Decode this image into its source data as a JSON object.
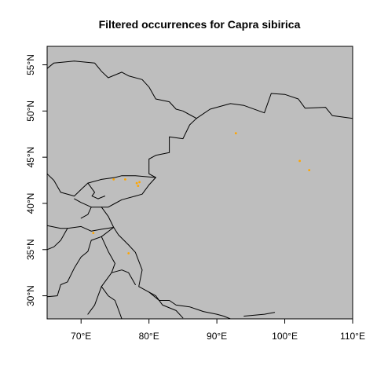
{
  "title": "Filtered occurrences for Capra sibirica",
  "colors": {
    "land": "#bebebe",
    "border": "#000000",
    "point": "#ffa500",
    "background": "#ffffff"
  },
  "chart_data": {
    "type": "scatter",
    "title": "Filtered occurrences for Capra sibirica",
    "xlim": [
      65,
      110
    ],
    "ylim": [
      27.5,
      57
    ],
    "x_ticks": [
      {
        "value": 70,
        "label": "70°E"
      },
      {
        "value": 80,
        "label": "80°E"
      },
      {
        "value": 90,
        "label": "90°E"
      },
      {
        "value": 100,
        "label": "100°E"
      },
      {
        "value": 110,
        "label": "110°E"
      }
    ],
    "y_ticks": [
      {
        "value": 30,
        "label": "30°N"
      },
      {
        "value": 35,
        "label": "35°N"
      },
      {
        "value": 40,
        "label": "40°N"
      },
      {
        "value": 45,
        "label": "45°N"
      },
      {
        "value": 50,
        "label": "50°N"
      },
      {
        "value": 55,
        "label": "55°N"
      }
    ],
    "points": [
      {
        "lon": 74.8,
        "lat": 42.6
      },
      {
        "lon": 76.5,
        "lat": 42.6
      },
      {
        "lon": 78.2,
        "lat": 42.2
      },
      {
        "lon": 78.4,
        "lat": 41.9
      },
      {
        "lon": 78.6,
        "lat": 42.3
      },
      {
        "lon": 71.8,
        "lat": 36.8
      },
      {
        "lon": 77.0,
        "lat": 34.6
      },
      {
        "lon": 92.8,
        "lat": 47.6
      },
      {
        "lon": 102.2,
        "lat": 44.6
      },
      {
        "lon": 103.6,
        "lat": 43.6
      }
    ],
    "borders": [
      [
        [
          65,
          54.6
        ],
        [
          66,
          55.2
        ],
        [
          69,
          55.4
        ],
        [
          72,
          55.2
        ],
        [
          73,
          54.3
        ],
        [
          74,
          53.6
        ],
        [
          76,
          54.2
        ],
        [
          77,
          53.8
        ],
        [
          79,
          53.4
        ],
        [
          80,
          52.6
        ],
        [
          81,
          51.3
        ],
        [
          83,
          51.0
        ],
        [
          84,
          50.2
        ],
        [
          85,
          50.0
        ],
        [
          86,
          49.6
        ],
        [
          87,
          49.2
        ]
      ],
      [
        [
          87,
          49.2
        ],
        [
          89,
          50.2
        ],
        [
          92,
          50.8
        ],
        [
          94,
          50.6
        ],
        [
          97,
          49.8
        ],
        [
          98,
          51.9
        ],
        [
          100,
          51.8
        ],
        [
          102,
          51.3
        ],
        [
          103,
          50.3
        ],
        [
          106,
          50.4
        ],
        [
          107,
          49.5
        ],
        [
          108,
          49.4
        ],
        [
          110,
          49.2
        ]
      ],
      [
        [
          87,
          49.2
        ],
        [
          86,
          48.5
        ],
        [
          85,
          47.0
        ],
        [
          83,
          47.2
        ],
        [
          83,
          45.5
        ],
        [
          81,
          45.2
        ],
        [
          80,
          44.8
        ],
        [
          80,
          43.2
        ],
        [
          81,
          42.8
        ]
      ],
      [
        [
          81,
          42.8
        ],
        [
          78,
          43.0
        ],
        [
          76,
          43.0
        ],
        [
          75,
          42.8
        ],
        [
          73,
          42.6
        ],
        [
          71,
          42.2
        ],
        [
          70,
          41.5
        ],
        [
          69,
          40.8
        ],
        [
          67,
          41.2
        ],
        [
          66,
          42.5
        ],
        [
          65,
          43.2
        ]
      ],
      [
        [
          81,
          42.8
        ],
        [
          80,
          42.0
        ],
        [
          79,
          41.0
        ],
        [
          78,
          40.8
        ],
        [
          76,
          40.4
        ],
        [
          75,
          40.0
        ],
        [
          74,
          39.6
        ],
        [
          73,
          39.6
        ],
        [
          71.5,
          39.6
        ],
        [
          70,
          40.1
        ],
        [
          69,
          40.5
        ]
      ],
      [
        [
          73,
          39.6
        ],
        [
          74,
          38.6
        ],
        [
          74.8,
          37.4
        ],
        [
          73,
          37.2
        ],
        [
          71.5,
          37.0
        ],
        [
          70,
          37.5
        ],
        [
          68,
          37.3
        ],
        [
          67,
          37.3
        ],
        [
          65,
          37.6
        ]
      ],
      [
        [
          71.5,
          39.6
        ],
        [
          71,
          38.8
        ],
        [
          70,
          38.4
        ]
      ],
      [
        [
          71,
          42.2
        ],
        [
          72,
          41.2
        ],
        [
          71.6,
          40.8
        ],
        [
          72.5,
          40.5
        ],
        [
          73.5,
          40.8
        ]
      ],
      [
        [
          74.8,
          37.4
        ],
        [
          75.5,
          36.6
        ],
        [
          77,
          35.5
        ],
        [
          78,
          34.7
        ],
        [
          79,
          32.8
        ],
        [
          78.5,
          31.0
        ],
        [
          80,
          30.4
        ],
        [
          81,
          30.0
        ],
        [
          82,
          29.0
        ],
        [
          84,
          28.4
        ],
        [
          85,
          27.6
        ]
      ],
      [
        [
          74.8,
          37.4
        ],
        [
          73,
          36.4
        ],
        [
          71.5,
          36.0
        ],
        [
          71,
          34.8
        ],
        [
          70,
          34.2
        ],
        [
          69,
          33.0
        ],
        [
          68,
          31.5
        ],
        [
          67,
          31.2
        ],
        [
          66.5,
          30.0
        ],
        [
          65,
          29.9
        ]
      ],
      [
        [
          68,
          37.3
        ],
        [
          67,
          36.0
        ],
        [
          66,
          35.3
        ],
        [
          65,
          35.0
        ]
      ],
      [
        [
          73,
          36.4
        ],
        [
          74,
          34.8
        ],
        [
          75,
          33.5
        ],
        [
          74.5,
          32.5
        ],
        [
          73,
          31.0
        ],
        [
          72,
          29.0
        ],
        [
          71,
          28.0
        ]
      ],
      [
        [
          74.5,
          32.5
        ],
        [
          76,
          32.8
        ],
        [
          77,
          32.5
        ],
        [
          78,
          31.2
        ]
      ],
      [
        [
          73,
          31.0
        ],
        [
          74,
          30.0
        ],
        [
          75,
          29.5
        ],
        [
          75.5,
          28.5
        ],
        [
          76,
          27.5
        ]
      ],
      [
        [
          80,
          30.4
        ],
        [
          81.5,
          29.5
        ],
        [
          83,
          29.5
        ],
        [
          84,
          29.0
        ],
        [
          86,
          28.8
        ],
        [
          88,
          28.3
        ],
        [
          90,
          28.0
        ],
        [
          91,
          27.8
        ],
        [
          92,
          27.5
        ]
      ],
      [
        [
          94,
          27.8
        ],
        [
          97,
          28.0
        ],
        [
          98.5,
          28.2
        ]
      ]
    ]
  }
}
